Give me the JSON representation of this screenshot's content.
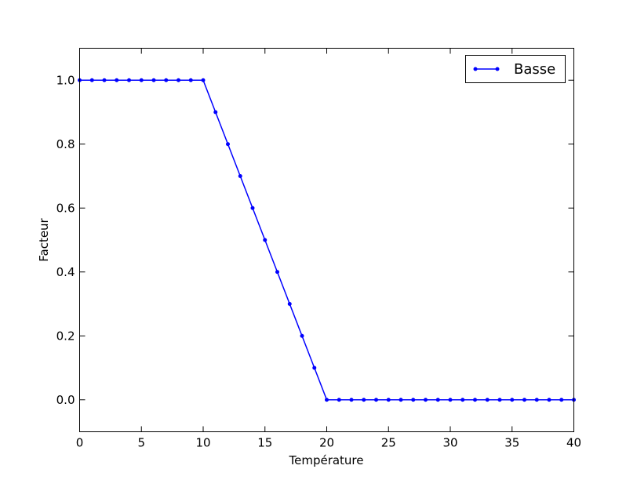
{
  "chart_data": {
    "type": "line",
    "title": "",
    "xlabel": "Température",
    "ylabel": "Facteur",
    "xlim": [
      0,
      40
    ],
    "ylim": [
      -0.1,
      1.1
    ],
    "xticks": [
      0,
      5,
      10,
      15,
      20,
      25,
      30,
      35,
      40
    ],
    "yticks": [
      0.0,
      0.2,
      0.4,
      0.6,
      0.8,
      1.0
    ],
    "xtick_labels": [
      "0",
      "5",
      "10",
      "15",
      "20",
      "25",
      "30",
      "35",
      "40"
    ],
    "ytick_labels": [
      "0.0",
      "0.2",
      "0.4",
      "0.6",
      "0.8",
      "1.0"
    ],
    "grid": false,
    "legend_position": "top-right",
    "series": [
      {
        "name": "Basse",
        "color": "#0000ff",
        "marker": "dot",
        "x": [
          0,
          1,
          2,
          3,
          4,
          5,
          6,
          7,
          8,
          9,
          10,
          11,
          12,
          13,
          14,
          15,
          16,
          17,
          18,
          19,
          20,
          21,
          22,
          23,
          24,
          25,
          26,
          27,
          28,
          29,
          30,
          31,
          32,
          33,
          34,
          35,
          36,
          37,
          38,
          39,
          40
        ],
        "y": [
          1.0,
          1.0,
          1.0,
          1.0,
          1.0,
          1.0,
          1.0,
          1.0,
          1.0,
          1.0,
          1.0,
          0.9,
          0.8,
          0.7,
          0.6,
          0.5,
          0.4,
          0.3,
          0.2,
          0.1,
          0.0,
          0.0,
          0.0,
          0.0,
          0.0,
          0.0,
          0.0,
          0.0,
          0.0,
          0.0,
          0.0,
          0.0,
          0.0,
          0.0,
          0.0,
          0.0,
          0.0,
          0.0,
          0.0,
          0.0,
          0.0
        ]
      }
    ]
  }
}
